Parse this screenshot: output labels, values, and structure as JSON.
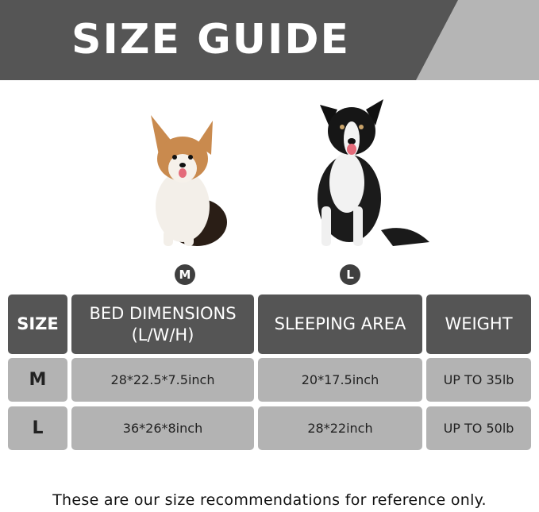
{
  "title": "SIZE GUIDE",
  "colors": {
    "header_bg": "#555555",
    "diagonal_accent": "#b5b5b5",
    "cell_bg": "#b3b3b3",
    "badge_bg": "#3f3f3f"
  },
  "dogs": [
    {
      "image": "corgi-photo",
      "badge": "M"
    },
    {
      "image": "border-collie-photo",
      "badge": "L"
    }
  ],
  "table": {
    "headers": [
      "SIZE",
      "BED DIMENSIONS\n(L/W/H)",
      "SLEEPING AREA",
      "WEIGHT"
    ],
    "rows": [
      {
        "size": "M",
        "bed": "28*22.5*7.5inch",
        "sleeping": "20*17.5inch",
        "weight": "UP TO 35lb"
      },
      {
        "size": "L",
        "bed": "36*26*8inch",
        "sleeping": "28*22inch",
        "weight": "UP TO 50lb"
      }
    ]
  },
  "footer": "These are our size recommendations for reference only."
}
